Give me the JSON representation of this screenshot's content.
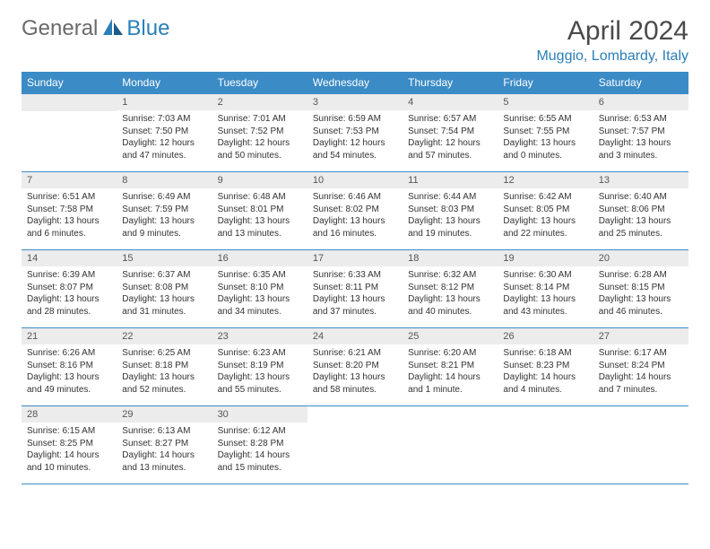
{
  "brand": {
    "part1": "General",
    "part2": "Blue"
  },
  "title": "April 2024",
  "location": "Muggio, Lombardy, Italy",
  "colors": {
    "header_blue": "#3b8bc6",
    "text_blue": "#2a7fb8",
    "grey_text": "#6a6a6a",
    "cell_head_bg": "#ececec"
  },
  "dow": [
    "Sunday",
    "Monday",
    "Tuesday",
    "Wednesday",
    "Thursday",
    "Friday",
    "Saturday"
  ],
  "weeks": [
    [
      null,
      {
        "n": "1",
        "sr": "Sunrise: 7:03 AM",
        "ss": "Sunset: 7:50 PM",
        "d1": "Daylight: 12 hours",
        "d2": "and 47 minutes."
      },
      {
        "n": "2",
        "sr": "Sunrise: 7:01 AM",
        "ss": "Sunset: 7:52 PM",
        "d1": "Daylight: 12 hours",
        "d2": "and 50 minutes."
      },
      {
        "n": "3",
        "sr": "Sunrise: 6:59 AM",
        "ss": "Sunset: 7:53 PM",
        "d1": "Daylight: 12 hours",
        "d2": "and 54 minutes."
      },
      {
        "n": "4",
        "sr": "Sunrise: 6:57 AM",
        "ss": "Sunset: 7:54 PM",
        "d1": "Daylight: 12 hours",
        "d2": "and 57 minutes."
      },
      {
        "n": "5",
        "sr": "Sunrise: 6:55 AM",
        "ss": "Sunset: 7:55 PM",
        "d1": "Daylight: 13 hours",
        "d2": "and 0 minutes."
      },
      {
        "n": "6",
        "sr": "Sunrise: 6:53 AM",
        "ss": "Sunset: 7:57 PM",
        "d1": "Daylight: 13 hours",
        "d2": "and 3 minutes."
      }
    ],
    [
      {
        "n": "7",
        "sr": "Sunrise: 6:51 AM",
        "ss": "Sunset: 7:58 PM",
        "d1": "Daylight: 13 hours",
        "d2": "and 6 minutes."
      },
      {
        "n": "8",
        "sr": "Sunrise: 6:49 AM",
        "ss": "Sunset: 7:59 PM",
        "d1": "Daylight: 13 hours",
        "d2": "and 9 minutes."
      },
      {
        "n": "9",
        "sr": "Sunrise: 6:48 AM",
        "ss": "Sunset: 8:01 PM",
        "d1": "Daylight: 13 hours",
        "d2": "and 13 minutes."
      },
      {
        "n": "10",
        "sr": "Sunrise: 6:46 AM",
        "ss": "Sunset: 8:02 PM",
        "d1": "Daylight: 13 hours",
        "d2": "and 16 minutes."
      },
      {
        "n": "11",
        "sr": "Sunrise: 6:44 AM",
        "ss": "Sunset: 8:03 PM",
        "d1": "Daylight: 13 hours",
        "d2": "and 19 minutes."
      },
      {
        "n": "12",
        "sr": "Sunrise: 6:42 AM",
        "ss": "Sunset: 8:05 PM",
        "d1": "Daylight: 13 hours",
        "d2": "and 22 minutes."
      },
      {
        "n": "13",
        "sr": "Sunrise: 6:40 AM",
        "ss": "Sunset: 8:06 PM",
        "d1": "Daylight: 13 hours",
        "d2": "and 25 minutes."
      }
    ],
    [
      {
        "n": "14",
        "sr": "Sunrise: 6:39 AM",
        "ss": "Sunset: 8:07 PM",
        "d1": "Daylight: 13 hours",
        "d2": "and 28 minutes."
      },
      {
        "n": "15",
        "sr": "Sunrise: 6:37 AM",
        "ss": "Sunset: 8:08 PM",
        "d1": "Daylight: 13 hours",
        "d2": "and 31 minutes."
      },
      {
        "n": "16",
        "sr": "Sunrise: 6:35 AM",
        "ss": "Sunset: 8:10 PM",
        "d1": "Daylight: 13 hours",
        "d2": "and 34 minutes."
      },
      {
        "n": "17",
        "sr": "Sunrise: 6:33 AM",
        "ss": "Sunset: 8:11 PM",
        "d1": "Daylight: 13 hours",
        "d2": "and 37 minutes."
      },
      {
        "n": "18",
        "sr": "Sunrise: 6:32 AM",
        "ss": "Sunset: 8:12 PM",
        "d1": "Daylight: 13 hours",
        "d2": "and 40 minutes."
      },
      {
        "n": "19",
        "sr": "Sunrise: 6:30 AM",
        "ss": "Sunset: 8:14 PM",
        "d1": "Daylight: 13 hours",
        "d2": "and 43 minutes."
      },
      {
        "n": "20",
        "sr": "Sunrise: 6:28 AM",
        "ss": "Sunset: 8:15 PM",
        "d1": "Daylight: 13 hours",
        "d2": "and 46 minutes."
      }
    ],
    [
      {
        "n": "21",
        "sr": "Sunrise: 6:26 AM",
        "ss": "Sunset: 8:16 PM",
        "d1": "Daylight: 13 hours",
        "d2": "and 49 minutes."
      },
      {
        "n": "22",
        "sr": "Sunrise: 6:25 AM",
        "ss": "Sunset: 8:18 PM",
        "d1": "Daylight: 13 hours",
        "d2": "and 52 minutes."
      },
      {
        "n": "23",
        "sr": "Sunrise: 6:23 AM",
        "ss": "Sunset: 8:19 PM",
        "d1": "Daylight: 13 hours",
        "d2": "and 55 minutes."
      },
      {
        "n": "24",
        "sr": "Sunrise: 6:21 AM",
        "ss": "Sunset: 8:20 PM",
        "d1": "Daylight: 13 hours",
        "d2": "and 58 minutes."
      },
      {
        "n": "25",
        "sr": "Sunrise: 6:20 AM",
        "ss": "Sunset: 8:21 PM",
        "d1": "Daylight: 14 hours",
        "d2": "and 1 minute."
      },
      {
        "n": "26",
        "sr": "Sunrise: 6:18 AM",
        "ss": "Sunset: 8:23 PM",
        "d1": "Daylight: 14 hours",
        "d2": "and 4 minutes."
      },
      {
        "n": "27",
        "sr": "Sunrise: 6:17 AM",
        "ss": "Sunset: 8:24 PM",
        "d1": "Daylight: 14 hours",
        "d2": "and 7 minutes."
      }
    ],
    [
      {
        "n": "28",
        "sr": "Sunrise: 6:15 AM",
        "ss": "Sunset: 8:25 PM",
        "d1": "Daylight: 14 hours",
        "d2": "and 10 minutes."
      },
      {
        "n": "29",
        "sr": "Sunrise: 6:13 AM",
        "ss": "Sunset: 8:27 PM",
        "d1": "Daylight: 14 hours",
        "d2": "and 13 minutes."
      },
      {
        "n": "30",
        "sr": "Sunrise: 6:12 AM",
        "ss": "Sunset: 8:28 PM",
        "d1": "Daylight: 14 hours",
        "d2": "and 15 minutes."
      },
      null,
      null,
      null,
      null
    ]
  ]
}
